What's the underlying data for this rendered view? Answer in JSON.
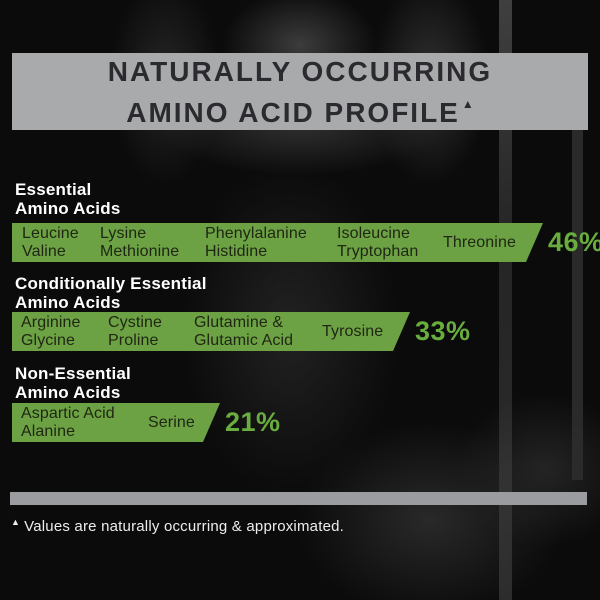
{
  "header": {
    "title_line1": "NATURALLY OCCURRING",
    "title_line2": "AMINO ACID PROFILE",
    "superscript": "▲"
  },
  "sections": [
    {
      "label_line1": "Essential",
      "label_line2": "Amino Acids",
      "percent": "46%",
      "groups": [
        [
          "Leucine",
          "Valine"
        ],
        [
          "Lysine",
          "Methionine"
        ],
        [
          "Phenylalanine",
          "Histidine"
        ],
        [
          "Isoleucine",
          "Tryptophan"
        ],
        [
          "Threonine"
        ]
      ]
    },
    {
      "label_line1": "Conditionally Essential",
      "label_line2": "Amino Acids",
      "percent": "33%",
      "groups": [
        [
          "Arginine",
          "Glycine"
        ],
        [
          "Cystine",
          "Proline"
        ],
        [
          "Glutamine &",
          "Glutamic Acid"
        ],
        [
          "Tyrosine"
        ]
      ]
    },
    {
      "label_line1": "Non-Essential",
      "label_line2": "Amino Acids",
      "percent": "21%",
      "groups": [
        [
          "Aspartic Acid",
          "Alanine"
        ],
        [
          "Serine"
        ]
      ]
    }
  ],
  "footnote": {
    "marker": "▲",
    "text": "Values are naturally occurring & approximated."
  },
  "colors": {
    "bar_green": "#6ca244",
    "percent_green": "#68ad3d",
    "banner_gray": "#a8aaac",
    "banner_text": "#2b2a2e",
    "bar_text": "#1f2613",
    "divider_gray": "#9a9c9f"
  },
  "chart_data": {
    "type": "bar",
    "title": "Naturally Occurring Amino Acid Profile",
    "categories": [
      "Essential Amino Acids",
      "Conditionally Essential Amino Acids",
      "Non-Essential Amino Acids"
    ],
    "values": [
      46,
      33,
      21
    ],
    "unit": "%",
    "xlim": [
      0,
      100
    ],
    "orientation": "horizontal",
    "annotations": [
      "Leucine, Valine, Lysine, Methionine, Phenylalanine, Histidine, Isoleucine, Tryptophan, Threonine",
      "Arginine, Glycine, Cystine, Proline, Glutamine & Glutamic Acid, Tyrosine",
      "Aspartic Acid, Alanine, Serine"
    ]
  }
}
